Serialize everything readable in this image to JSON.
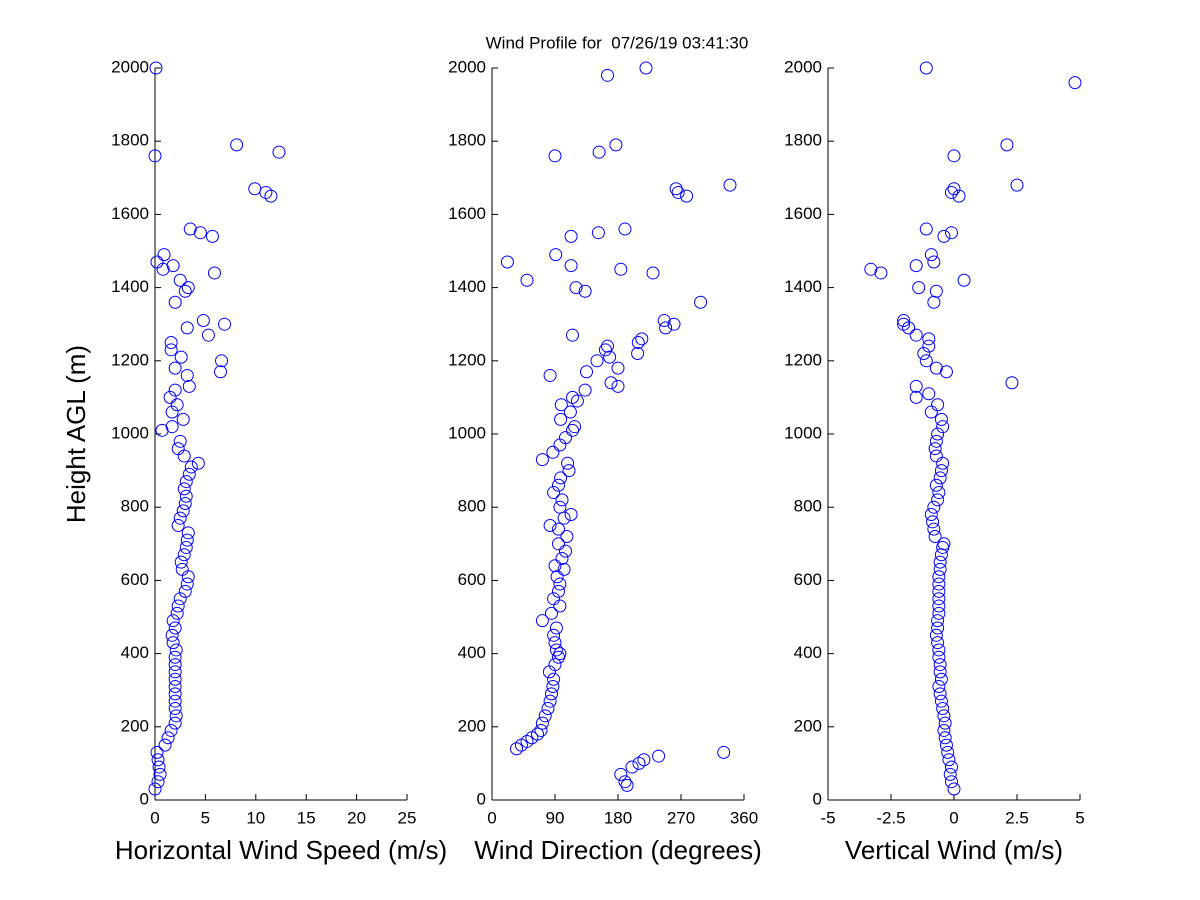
{
  "chart_data": [
    {
      "type": "scatter",
      "title": "Wind Profile for  07/26/19 03:41:30",
      "xlabel": "Horizontal Wind Speed (m/s)",
      "ylabel": "Height AGL (m)",
      "color": "#0000ff",
      "xlim": [
        0,
        25
      ],
      "xticks": [
        0,
        5,
        10,
        15,
        20,
        25
      ],
      "ylim": [
        0,
        2000
      ],
      "yticks": [
        0,
        200,
        400,
        600,
        800,
        1000,
        1200,
        1400,
        1600,
        1800,
        2000
      ],
      "x": [
        0,
        0.3,
        0.5,
        0.4,
        0.3,
        0.2,
        1.0,
        1.3,
        1.6,
        2.0,
        2.1,
        2.0,
        2.0,
        2.0,
        2.0,
        2.0,
        2.0,
        2.0,
        2.0,
        2.1,
        1.8,
        1.7,
        2.0,
        1.8,
        2.2,
        2.3,
        2.5,
        3.0,
        3.2,
        3.3,
        2.7,
        2.6,
        2.9,
        3.1,
        3.2,
        3.3,
        2.3,
        2.5,
        2.8,
        3.0,
        3.1,
        2.9,
        3.1,
        3.4,
        3.6,
        4.3,
        2.9,
        2.3,
        2.5,
        0.7,
        1.7,
        2.8,
        1.7,
        2.2,
        1.5,
        2.0,
        3.4,
        3.2,
        2.0,
        2.6,
        1.6,
        1.6,
        3.2,
        6.9,
        4.8,
        5.3,
        6.6,
        6.5,
        2.0,
        3.0,
        3.3,
        2.5,
        5.9,
        0.8,
        1.8,
        0.2,
        0.9,
        5.7,
        4.5,
        3.5,
        11.5,
        11.0,
        9.9,
        0.0,
        12.3,
        8.1,
        0.1
      ],
      "values": [
        30,
        50,
        70,
        90,
        110,
        130,
        150,
        170,
        190,
        210,
        230,
        250,
        270,
        290,
        310,
        330,
        350,
        370,
        390,
        410,
        430,
        450,
        470,
        490,
        510,
        530,
        550,
        570,
        590,
        610,
        630,
        650,
        670,
        690,
        710,
        730,
        750,
        770,
        790,
        810,
        830,
        850,
        870,
        890,
        910,
        920,
        940,
        960,
        980,
        1010,
        1020,
        1040,
        1060,
        1080,
        1100,
        1120,
        1130,
        1160,
        1180,
        1210,
        1230,
        1250,
        1290,
        1300,
        1310,
        1270,
        1200,
        1170,
        1360,
        1390,
        1400,
        1420,
        1440,
        1450,
        1460,
        1470,
        1490,
        1540,
        1550,
        1560,
        1650,
        1660,
        1670,
        1760,
        1770,
        1790,
        2000
      ]
    },
    {
      "type": "scatter",
      "xlabel": "Wind Direction (degrees)",
      "color": "#0000ff",
      "xlim": [
        0,
        360
      ],
      "xticks": [
        0,
        90,
        180,
        270,
        360
      ],
      "ylim": [
        0,
        2000
      ],
      "yticks": [
        0,
        200,
        400,
        600,
        800,
        1000,
        1200,
        1400,
        1600,
        1800,
        2000
      ],
      "x": [
        193,
        190,
        184,
        200,
        210,
        217,
        238,
        331,
        35,
        42,
        50,
        57,
        65,
        70,
        72,
        76,
        80,
        83,
        85,
        87,
        88,
        82,
        90,
        95,
        97,
        92,
        90,
        88,
        92,
        72,
        85,
        97,
        88,
        95,
        97,
        93,
        103,
        90,
        100,
        105,
        95,
        107,
        95,
        83,
        103,
        113,
        97,
        100,
        88,
        95,
        98,
        110,
        108,
        72,
        87,
        97,
        105,
        115,
        118,
        98,
        112,
        99,
        122,
        115,
        133,
        170,
        180,
        83,
        135,
        180,
        150,
        168,
        208,
        162,
        165,
        209,
        214,
        115,
        248,
        260,
        246,
        298,
        133,
        120,
        50,
        230,
        184,
        113,
        22,
        91,
        113,
        152,
        190,
        278,
        266,
        263,
        340,
        90,
        153,
        177,
        165,
        220
      ],
      "values": [
        40,
        50,
        70,
        90,
        100,
        110,
        120,
        130,
        140,
        150,
        160,
        170,
        180,
        190,
        210,
        230,
        250,
        270,
        290,
        310,
        330,
        350,
        370,
        390,
        400,
        410,
        430,
        450,
        470,
        490,
        510,
        530,
        550,
        570,
        590,
        610,
        630,
        640,
        660,
        680,
        700,
        720,
        740,
        750,
        770,
        780,
        800,
        820,
        840,
        860,
        880,
        900,
        920,
        930,
        950,
        970,
        990,
        1010,
        1020,
        1040,
        1060,
        1080,
        1090,
        1100,
        1120,
        1140,
        1130,
        1160,
        1170,
        1180,
        1200,
        1210,
        1220,
        1230,
        1240,
        1250,
        1260,
        1270,
        1290,
        1300,
        1310,
        1360,
        1390,
        1400,
        1420,
        1440,
        1450,
        1460,
        1470,
        1490,
        1540,
        1550,
        1560,
        1650,
        1660,
        1670,
        1680,
        1760,
        1770,
        1790,
        1980,
        2000
      ]
    },
    {
      "type": "scatter",
      "xlabel": "Vertical Wind (m/s)",
      "color": "#0000ff",
      "xlim": [
        -5,
        5
      ],
      "xticks": [
        -5,
        -2.5,
        0,
        2.5,
        5
      ],
      "ylim": [
        0,
        2000
      ],
      "yticks": [
        0,
        200,
        400,
        600,
        800,
        1000,
        1200,
        1400,
        1600,
        1800,
        2000
      ],
      "x": [
        0.0,
        -0.1,
        -0.15,
        -0.1,
        -0.2,
        -0.25,
        -0.3,
        -0.35,
        -0.4,
        -0.35,
        -0.4,
        -0.45,
        -0.5,
        -0.55,
        -0.6,
        -0.5,
        -0.55,
        -0.55,
        -0.6,
        -0.6,
        -0.65,
        -0.7,
        -0.65,
        -0.65,
        -0.6,
        -0.6,
        -0.6,
        -0.6,
        -0.6,
        -0.6,
        -0.55,
        -0.55,
        -0.5,
        -0.45,
        -0.4,
        -0.75,
        -0.8,
        -0.85,
        -0.9,
        -0.8,
        -0.65,
        -0.6,
        -0.7,
        -0.55,
        -0.5,
        -0.45,
        -0.7,
        -0.75,
        -0.7,
        -0.65,
        -0.45,
        -0.5,
        -0.9,
        -0.65,
        -1.5,
        -1.0,
        -1.5,
        -0.3,
        2.3,
        -0.7,
        -1.1,
        -1.2,
        -1.0,
        -1.0,
        -1.5,
        -1.8,
        -2.0,
        -2.0,
        -0.8,
        -0.7,
        -1.4,
        0.4,
        -2.9,
        -3.3,
        -1.5,
        -0.8,
        -0.9,
        -0.4,
        -0.1,
        -1.1,
        0.2,
        -0.1,
        0.0,
        2.5,
        0.0,
        2.1,
        4.8,
        -1.1
      ],
      "values": [
        30,
        50,
        70,
        90,
        110,
        130,
        150,
        170,
        190,
        210,
        230,
        250,
        270,
        290,
        310,
        330,
        350,
        370,
        390,
        410,
        430,
        450,
        470,
        490,
        510,
        530,
        550,
        570,
        590,
        610,
        630,
        650,
        670,
        690,
        700,
        720,
        740,
        760,
        780,
        800,
        820,
        840,
        860,
        880,
        900,
        920,
        940,
        960,
        980,
        1000,
        1020,
        1040,
        1060,
        1080,
        1100,
        1110,
        1130,
        1170,
        1140,
        1180,
        1200,
        1220,
        1240,
        1260,
        1270,
        1290,
        1300,
        1310,
        1360,
        1390,
        1400,
        1420,
        1440,
        1450,
        1460,
        1470,
        1490,
        1540,
        1550,
        1560,
        1650,
        1660,
        1670,
        1680,
        1760,
        1790,
        1960,
        2000
      ]
    }
  ]
}
